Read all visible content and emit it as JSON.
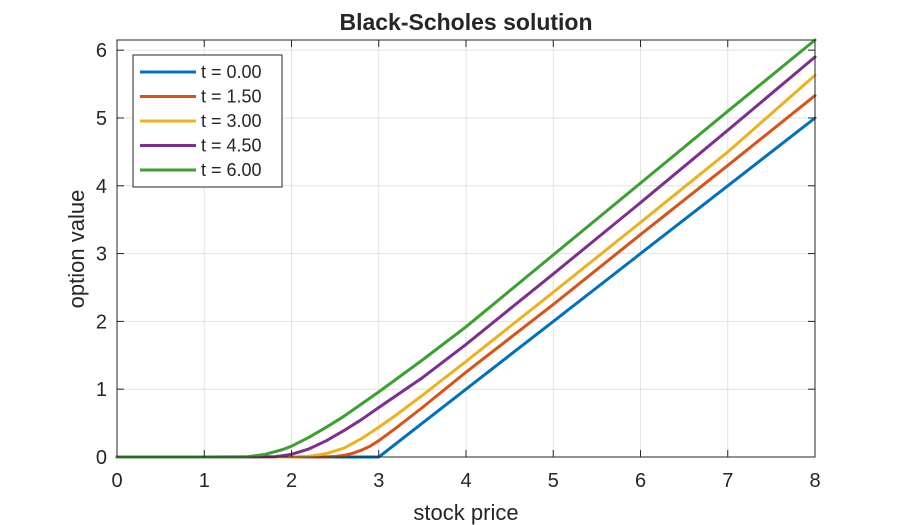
{
  "chart_data": {
    "type": "line",
    "title": "Black-Scholes solution",
    "xlabel": "stock price",
    "ylabel": "option value",
    "xlim": [
      0,
      8
    ],
    "ylim": [
      0,
      6.15
    ],
    "xticks": [
      "0",
      "1",
      "2",
      "3",
      "4",
      "5",
      "6",
      "7",
      "8"
    ],
    "yticks": [
      "0",
      "1",
      "2",
      "3",
      "4",
      "5",
      "6"
    ],
    "grid": true,
    "legend_position": "top-left",
    "series": [
      {
        "name": "t = 0.00",
        "color": "#0072BD",
        "x": [
          0,
          1,
          2,
          2.5,
          3,
          4,
          5,
          6,
          7,
          8
        ],
        "y": [
          0,
          0,
          0,
          0,
          0,
          1,
          2,
          3,
          4,
          5
        ]
      },
      {
        "name": "t = 1.50",
        "color": "#D95319",
        "x": [
          0,
          1,
          2,
          2.4,
          2.5,
          2.6,
          2.7,
          2.8,
          2.9,
          3,
          3.2,
          3.5,
          4,
          5,
          6,
          7,
          8
        ],
        "y": [
          0,
          0,
          0,
          0.002,
          0.008,
          0.025,
          0.055,
          0.1,
          0.16,
          0.24,
          0.43,
          0.73,
          1.25,
          2.25,
          3.28,
          4.3,
          5.33
        ]
      },
      {
        "name": "t = 3.00",
        "color": "#EDB120",
        "x": [
          0,
          1,
          2,
          2.2,
          2.4,
          2.6,
          2.8,
          3,
          3.2,
          3.5,
          4,
          5,
          6,
          7,
          8
        ],
        "y": [
          0,
          0,
          0,
          0.01,
          0.05,
          0.13,
          0.27,
          0.44,
          0.62,
          0.91,
          1.41,
          2.43,
          3.46,
          4.5,
          5.63
        ]
      },
      {
        "name": "t = 4.50",
        "color": "#7E2F8E",
        "x": [
          0,
          1,
          1.8,
          2,
          2.2,
          2.4,
          2.6,
          2.8,
          3,
          3.5,
          4,
          5,
          6,
          7,
          8
        ],
        "y": [
          0,
          0,
          0.003,
          0.04,
          0.12,
          0.24,
          0.39,
          0.55,
          0.73,
          1.17,
          1.66,
          2.7,
          3.75,
          4.82,
          5.9
        ]
      },
      {
        "name": "t = 6.00",
        "color": "#3AA030",
        "x": [
          0,
          1,
          1.5,
          1.7,
          1.9,
          2,
          2.2,
          2.4,
          2.6,
          2.8,
          3,
          3.5,
          4,
          5,
          6,
          7,
          8
        ],
        "y": [
          0,
          0,
          0.005,
          0.04,
          0.11,
          0.16,
          0.29,
          0.44,
          0.6,
          0.78,
          0.96,
          1.43,
          1.92,
          2.98,
          4.04,
          5.1,
          6.15
        ]
      }
    ]
  }
}
